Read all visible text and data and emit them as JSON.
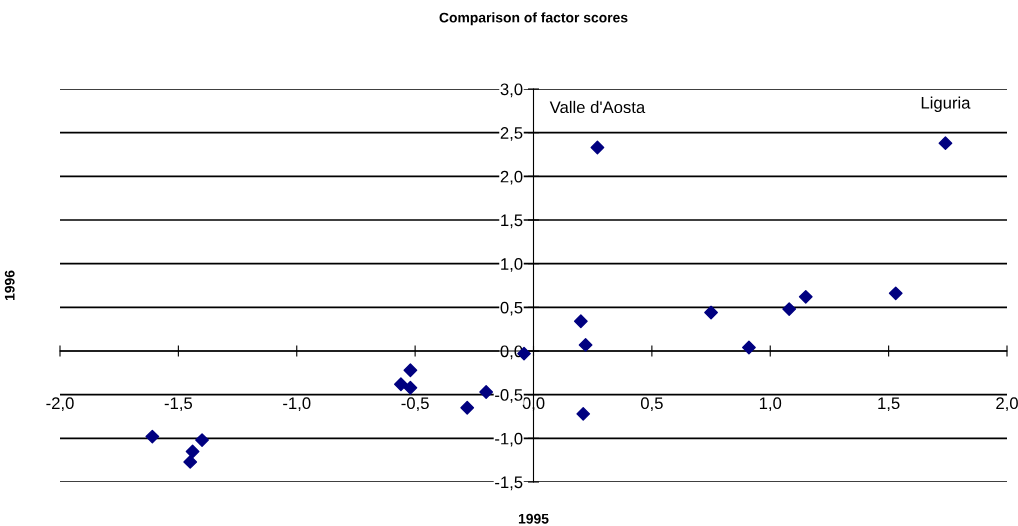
{
  "chart_data": {
    "type": "scatter",
    "title": "Comparison of factor scores",
    "xlabel": "1995",
    "ylabel": "1996",
    "x": [
      -1.61,
      -1.4,
      -1.44,
      -1.45,
      -0.52,
      -0.56,
      -0.52,
      -0.28,
      -0.2,
      -0.04,
      0.2,
      0.22,
      0.21,
      0.27,
      0.75,
      0.91,
      1.08,
      1.15,
      1.53,
      1.74
    ],
    "series": [
      {
        "color": "#000080",
        "values": [
          -0.98,
          -1.02,
          -1.15,
          -1.27,
          -0.22,
          -0.38,
          -0.42,
          -0.65,
          -0.47,
          -0.03,
          0.34,
          0.07,
          -0.72,
          2.33,
          0.44,
          0.04,
          0.48,
          0.62,
          0.66,
          2.38
        ]
      }
    ],
    "marker": "diamond",
    "grid": "y",
    "legend": false,
    "xlim": [
      -2,
      2
    ],
    "ylim": [
      -1.5,
      3
    ],
    "xticks": [
      {
        "value": -2,
        "label": "-2,0"
      },
      {
        "value": -1.5,
        "label": "-1,5"
      },
      {
        "value": -1,
        "label": "-1,0"
      },
      {
        "value": -0.5,
        "label": "-0,5"
      },
      {
        "value": 0,
        "label": "0,0"
      },
      {
        "value": 0.5,
        "label": "0,5"
      },
      {
        "value": 1,
        "label": "1,0"
      },
      {
        "value": 1.5,
        "label": "1,5"
      },
      {
        "value": 2,
        "label": "2,0"
      }
    ],
    "yticks": [
      {
        "value": -1.5,
        "label": "-1,5"
      },
      {
        "value": -1,
        "label": "-1,0"
      },
      {
        "value": -0.5,
        "label": "-0,5"
      },
      {
        "value": 0,
        "label": "0,0"
      },
      {
        "value": 0.5,
        "label": "0,5"
      },
      {
        "value": 1,
        "label": "1,0"
      },
      {
        "value": 1.5,
        "label": "1,5"
      },
      {
        "value": 2,
        "label": "2,0"
      },
      {
        "value": 2.5,
        "label": "2,5"
      },
      {
        "value": 3,
        "label": "3,0"
      }
    ],
    "annotations": [
      {
        "text": "Valle d'Aosta",
        "x": 0.27,
        "y": 2.33
      },
      {
        "text": "Liguria",
        "x": 1.74,
        "y": 2.38
      }
    ]
  }
}
